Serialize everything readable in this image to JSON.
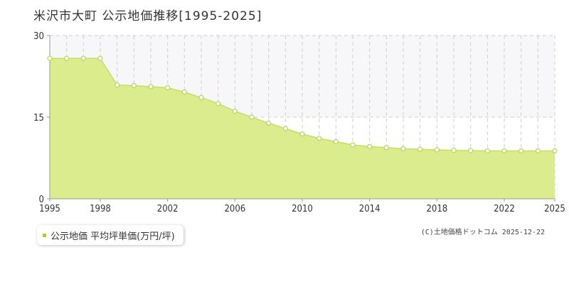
{
  "title": "米沢市大町 公示地価推移[1995-2025]",
  "legend": {
    "label": "公示地価 平均坪単価(万円/坪)",
    "color": "#a8cc3c"
  },
  "copyright": "(C)土地価格ドットコム 2025-12-22",
  "colors": {
    "fill": "#dbec8f",
    "line": "#c5e05a",
    "marker_stroke": "#b8d456",
    "marker_fill": "#ffffff",
    "grid": "#cfcfcf",
    "upper_band": "#f7f7f9",
    "axis": "#999999",
    "tick_text": "#333333"
  },
  "chart_data": {
    "type": "area",
    "title": "米沢市大町 公示地価推移[1995-2025]",
    "xlabel": "",
    "ylabel": "",
    "xlim": [
      1995,
      2025
    ],
    "ylim": [
      0,
      30
    ],
    "yticks": [
      0,
      15,
      30
    ],
    "xticks": [
      1995,
      1998,
      2002,
      2006,
      2010,
      2014,
      2018,
      2022,
      2025
    ],
    "grid": true,
    "legend_position": "bottom-left",
    "series": [
      {
        "name": "公示地価 平均坪単価(万円/坪)",
        "x": [
          1995,
          1996,
          1997,
          1998,
          1999,
          2000,
          2001,
          2002,
          2003,
          2004,
          2005,
          2006,
          2007,
          2008,
          2009,
          2010,
          2011,
          2012,
          2013,
          2014,
          2015,
          2016,
          2017,
          2018,
          2019,
          2020,
          2021,
          2022,
          2023,
          2024,
          2025
        ],
        "values": [
          25.8,
          25.8,
          25.8,
          25.8,
          20.9,
          20.8,
          20.6,
          20.4,
          19.6,
          18.6,
          17.5,
          16.1,
          15.0,
          13.9,
          12.9,
          11.9,
          11.1,
          10.5,
          9.9,
          9.6,
          9.4,
          9.2,
          9.1,
          9.0,
          8.9,
          8.85,
          8.8,
          8.8,
          8.8,
          8.8,
          8.8
        ]
      }
    ]
  }
}
